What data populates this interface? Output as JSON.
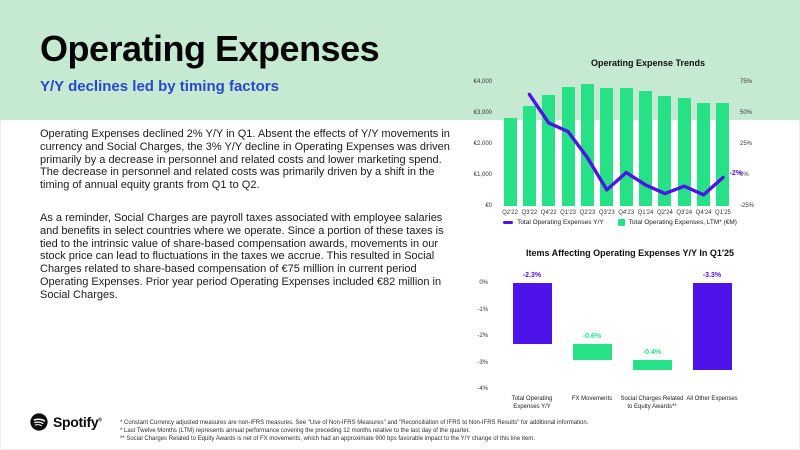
{
  "header": {
    "title": "Operating Expenses",
    "subtitle": "Y/Y declines led by timing factors"
  },
  "main": {
    "paragraphs": [
      "Operating Expenses declined 2% Y/Y in Q1. Absent the effects of Y/Y movements in currency and Social Charges, the 3% Y/Y decline in Operating Expenses was driven primarily by a decrease in personnel and related costs and lower marketing spend. The decrease in personnel and related costs was primarily driven by a shift in the timing of annual equity grants from Q1 to Q2.",
      "As a reminder, Social Charges are payroll taxes associated with employee salaries and benefits in select countries where we operate. Since a portion of these taxes is tied to the intrinsic value of share-based compensation awards, movements in our stock price can lead to fluctuations in the taxes we accrue. This resulted in Social Charges related to share-based compensation of €75 million in current period Operating Expenses. Prior year period Operating Expenses included €82 million in Social Charges."
    ]
  },
  "colors": {
    "purple": "#4e13e8",
    "green": "#27e186",
    "mint": "#c6ead1",
    "blue": "#2a46cf"
  },
  "chart_data": [
    {
      "type": "combo-bar-line",
      "title": "Operating Expense Trends",
      "categories": [
        "Q2'22",
        "Q3'22",
        "Q4'22",
        "Q1'23",
        "Q2'23",
        "Q3'23",
        "Q4'23",
        "Q1'24",
        "Q2'24",
        "Q3'24",
        "Q4'24",
        "Q1'25"
      ],
      "series": [
        {
          "name": "Total Operating Expenses Y/Y",
          "type": "line",
          "axis": "right",
          "color_key": "purple",
          "values": [
            null,
            65,
            42,
            35,
            14,
            -12,
            2,
            -8,
            -15,
            -9,
            -16,
            -2
          ],
          "end_label": "-2%"
        },
        {
          "name": "Total Operating Expenses, LTM* (€M)",
          "type": "bar",
          "axis": "left",
          "color_key": "green",
          "values": [
            2850,
            3240,
            3570,
            3830,
            3930,
            3800,
            3810,
            3720,
            3550,
            3480,
            3340,
            3320
          ]
        }
      ],
      "left_axis": {
        "ticks": [
          "€0",
          "€1,000",
          "€2,000",
          "€3,000",
          "€4,000"
        ],
        "min": 0,
        "max": 4000
      },
      "right_axis": {
        "ticks": [
          "-25%",
          "0%",
          "25%",
          "50%",
          "75%"
        ],
        "min": -25,
        "max": 75
      },
      "legend_position": "bottom",
      "grid": false
    },
    {
      "type": "bar",
      "title": "Items Affecting Operating Expenses Y/Y In Q1'25",
      "categories": [
        "Total Operating Expenses Y/Y",
        "FX Movements",
        "Social Charges Related to Equity Awards**",
        "All Other Expenses"
      ],
      "bars": [
        {
          "value_label": "-2.3%",
          "start": 0,
          "end": -2.3,
          "color_key": "purple"
        },
        {
          "value_label": "-0.6%",
          "start": -2.3,
          "end": -2.9,
          "color_key": "green"
        },
        {
          "value_label": "-0.4%",
          "start": -2.9,
          "end": -3.3,
          "color_key": "green"
        },
        {
          "value_label": "-3.3%",
          "start": 0,
          "end": -3.3,
          "color_key": "purple"
        }
      ],
      "y_axis": {
        "ticks": [
          "0%",
          "-1%",
          "-2%",
          "-3%",
          "-4%"
        ],
        "min": -4,
        "max": 0
      },
      "grid": false
    }
  ],
  "footer": {
    "brand": "Spotify",
    "reg": "®",
    "footnotes": [
      "* Constant Currency adjusted measures are non-IFRS measures. See \"Use of Non-IFRS Measures\" and \"Reconciliation of IFRS to Non-IFRS Results\" for additional information.",
      "* Last Twelve Months (LTM) represents annual performance covering the preceding 12 months relative to the last day of the quarter.",
      "** Social Charges Related to Equity Awards is net of FX movements, which had an approximate 900 bps favorable impact to the Y/Y change of this line item."
    ]
  }
}
